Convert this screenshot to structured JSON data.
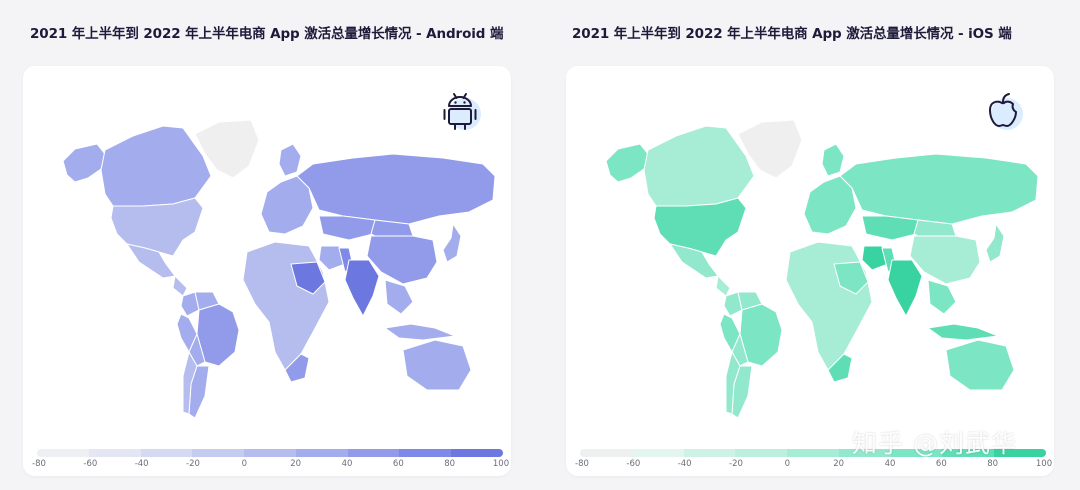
{
  "panels": [
    {
      "title": "2021 年上半年到 2022 年上半年电商 App 激活总量增长情况 - Android 端",
      "platform_icon": "android-icon",
      "legend_ticks": [
        "-80",
        "-60",
        "-40",
        "-20",
        "0",
        "20",
        "40",
        "60",
        "80",
        "100"
      ],
      "palette": [
        "#eeeff3",
        "#e4e6f5",
        "#d5d9f2",
        "#c6cbf0",
        "#b5bcee",
        "#a3acec",
        "#919bea",
        "#7f8ae8",
        "#6c77e0"
      ],
      "map_data": {
        "type": "choropleth",
        "value_range": [
          -80,
          100
        ],
        "no_data_color": "#efefef",
        "regions": [
          {
            "name": "Canada",
            "value": 20
          },
          {
            "name": "Alaska",
            "value": 20
          },
          {
            "name": "United States",
            "value": 15
          },
          {
            "name": "Mexico",
            "value": 10
          },
          {
            "name": "Central America",
            "value": 10
          },
          {
            "name": "Colombia",
            "value": 30
          },
          {
            "name": "Venezuela",
            "value": 20
          },
          {
            "name": "Peru",
            "value": 35
          },
          {
            "name": "Brazil",
            "value": 45
          },
          {
            "name": "Bolivia",
            "value": 25
          },
          {
            "name": "Argentina",
            "value": 20
          },
          {
            "name": "Chile",
            "value": 15
          },
          {
            "name": "Europe",
            "value": 25
          },
          {
            "name": "Scandinavia",
            "value": 25
          },
          {
            "name": "Russia",
            "value": 55
          },
          {
            "name": "Kazakhstan",
            "value": 55
          },
          {
            "name": "China",
            "value": 40
          },
          {
            "name": "Mongolia",
            "value": 50
          },
          {
            "name": "Japan",
            "value": 30
          },
          {
            "name": "India",
            "value": 100
          },
          {
            "name": "Saudi Arabia",
            "value": 80
          },
          {
            "name": "Iran",
            "value": 35
          },
          {
            "name": "Pakistan",
            "value": 75
          },
          {
            "name": "Southeast Asia",
            "value": 20
          },
          {
            "name": "Indonesia",
            "value": 25
          },
          {
            "name": "Australia",
            "value": 25
          },
          {
            "name": "South Africa",
            "value": 50
          },
          {
            "name": "Africa",
            "value": 5
          },
          {
            "name": "Greenland",
            "value": null
          }
        ]
      }
    },
    {
      "title": "2021 年上半年到 2022 年上半年电商 App 激活总量增长情况 - iOS 端",
      "platform_icon": "apple-icon",
      "legend_ticks": [
        "-80",
        "-60",
        "-40",
        "-20",
        "0",
        "20",
        "40",
        "60",
        "80",
        "100"
      ],
      "palette": [
        "#eef0ef",
        "#e2f5ef",
        "#cff2e6",
        "#bcefde",
        "#a7ecd5",
        "#92e8cc",
        "#7ce5c3",
        "#5fdeb5",
        "#38d3a0"
      ],
      "map_data": {
        "type": "choropleth",
        "value_range": [
          -80,
          100
        ],
        "no_data_color": "#efefef",
        "regions": [
          {
            "name": "Canada",
            "value": 15
          },
          {
            "name": "Alaska",
            "value": 55
          },
          {
            "name": "United States",
            "value": 65
          },
          {
            "name": "Mexico",
            "value": 20
          },
          {
            "name": "Central America",
            "value": 15
          },
          {
            "name": "Colombia",
            "value": 35
          },
          {
            "name": "Venezuela",
            "value": 25
          },
          {
            "name": "Peru",
            "value": 40
          },
          {
            "name": "Brazil",
            "value": 50
          },
          {
            "name": "Bolivia",
            "value": 30
          },
          {
            "name": "Argentina",
            "value": 25
          },
          {
            "name": "Chile",
            "value": 20
          },
          {
            "name": "Europe",
            "value": 40
          },
          {
            "name": "Scandinavia",
            "value": 45
          },
          {
            "name": "Russia",
            "value": 55
          },
          {
            "name": "Kazakhstan",
            "value": 60
          },
          {
            "name": "China",
            "value": 10
          },
          {
            "name": "Mongolia",
            "value": 35
          },
          {
            "name": "Japan",
            "value": 30
          },
          {
            "name": "India",
            "value": 100
          },
          {
            "name": "Saudi Arabia",
            "value": 50
          },
          {
            "name": "Iran",
            "value": 85
          },
          {
            "name": "Pakistan",
            "value": 75
          },
          {
            "name": "Southeast Asia",
            "value": 55
          },
          {
            "name": "Indonesia",
            "value": 70
          },
          {
            "name": "Australia",
            "value": 40
          },
          {
            "name": "South Africa",
            "value": 75
          },
          {
            "name": "Africa",
            "value": 5
          },
          {
            "name": "Greenland",
            "value": null
          }
        ]
      }
    }
  ],
  "watermark": "知乎 @刘武华"
}
